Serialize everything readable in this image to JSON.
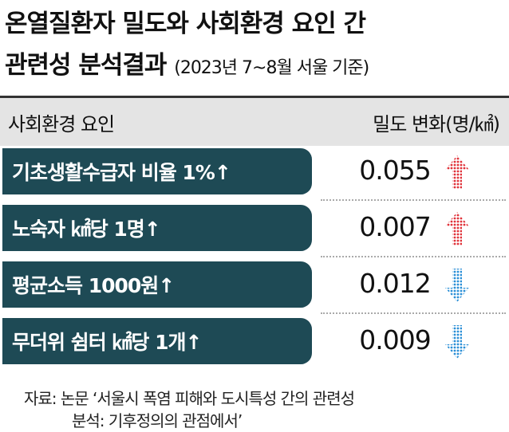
{
  "header": {
    "title_line1": "온열질환자 밀도와 사회환경 요인 간",
    "title_line2": "관련성 분석결과",
    "subtitle": "(2023년 7~8월 서울 기준)"
  },
  "table": {
    "columns": [
      "사회환경 요인",
      "밀도 변화(명/㎢)"
    ],
    "rows": [
      [
        "기초생활수급자 비율 1%↑",
        0.055
      ],
      [
        "노숙자 ㎢당 1명↑",
        0.007
      ],
      [
        "평균소득 1000원↑",
        0.012
      ],
      [
        "무더위 쉼터 ㎢당 1개↑",
        0.009
      ]
    ]
  },
  "source": [
    "자료: 논문 ‘서울시 폭염 피해와 도시특성 간의 관련성",
    "분석: 기후정의의 관점에서’"
  ]
}
